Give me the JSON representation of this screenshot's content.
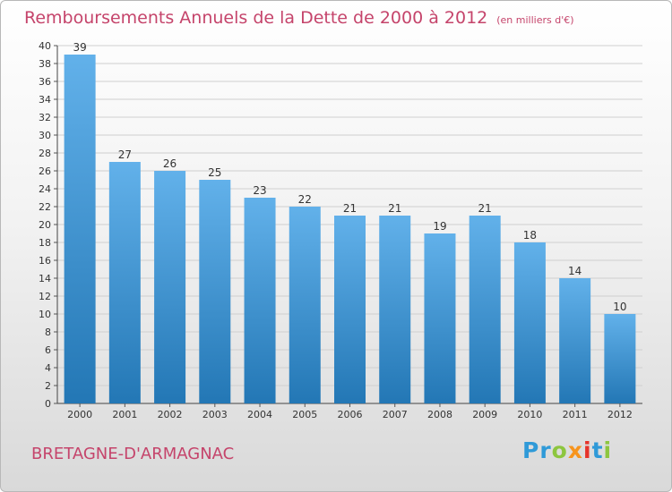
{
  "header": {
    "title": "Remboursements Annuels de la Dette de 2000 à 2012",
    "unit": "(en milliers d'€)"
  },
  "footer": {
    "commune": "BRETAGNE-D'ARMAGNAC",
    "logo": [
      "Pr",
      "o",
      "x",
      "i",
      "t",
      "i"
    ]
  },
  "colors": {
    "title": "#c5446b",
    "bar_top": "#62b1ea",
    "bar_bottom": "#2377b5",
    "grid": "#cfcfcf"
  },
  "chart_data": {
    "type": "bar",
    "title": "Remboursements Annuels de la Dette de 2000 à 2012",
    "xlabel": "",
    "ylabel": "en milliers d'€",
    "ylim": [
      0,
      40
    ],
    "ytick_step": 2,
    "grid": true,
    "categories": [
      "2000",
      "2001",
      "2002",
      "2003",
      "2004",
      "2005",
      "2006",
      "2007",
      "2008",
      "2009",
      "2010",
      "2011",
      "2012"
    ],
    "values": [
      39,
      27,
      26,
      25,
      23,
      22,
      21,
      21,
      19,
      21,
      18,
      14,
      10
    ]
  }
}
